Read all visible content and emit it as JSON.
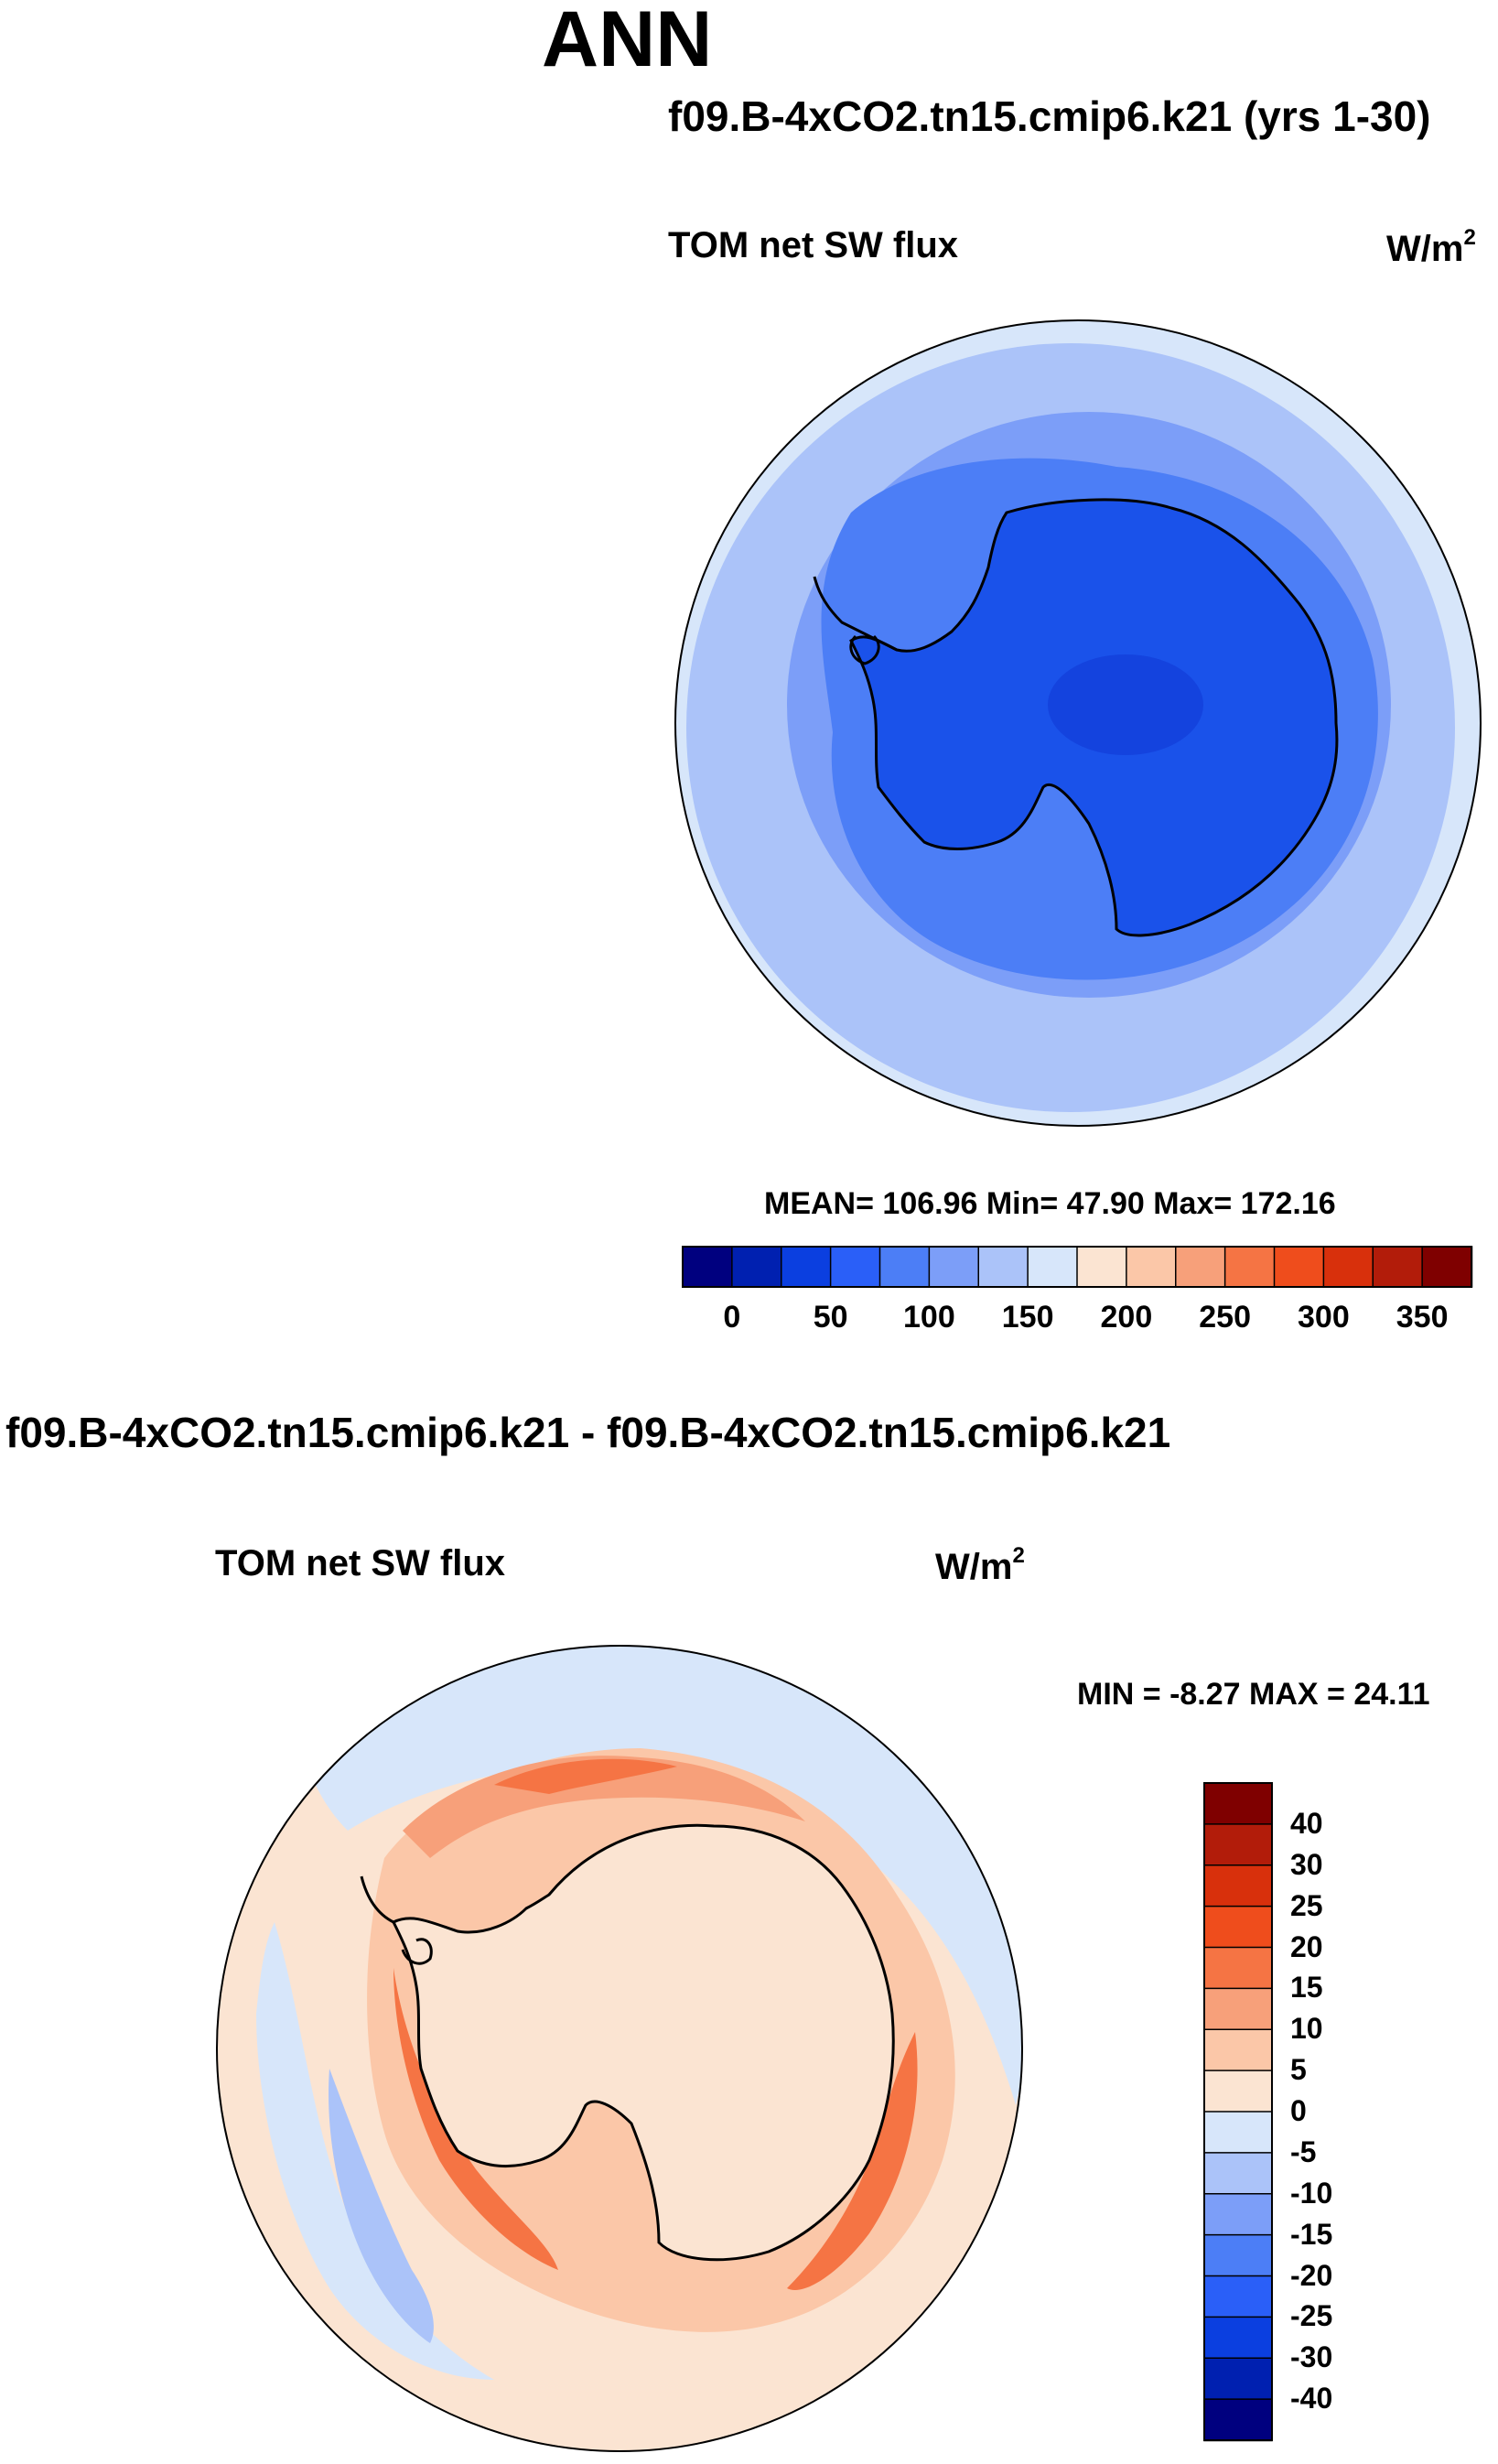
{
  "season": "ANN",
  "top_panel": {
    "case_title": "f09.B-4xCO2.tn15.cmip6.k21 (yrs 1-30)",
    "variable": "TOM net SW flux",
    "units_base": "W/m",
    "units_exp": "2",
    "stats": "MEAN= 106.96  Min=  47.90  Max= 172.16",
    "colorbar_labels": [
      "0",
      "50",
      "100",
      "150",
      "200",
      "250",
      "300",
      "350"
    ],
    "colorbar_colors": [
      "#00007f",
      "#0020b0",
      "#0b3fe0",
      "#2a5ff8",
      "#4c7ef6",
      "#7c9ef8",
      "#abc3f9",
      "#d7e6fa",
      "#fbe4d2",
      "#fbc7a8",
      "#f7a07a",
      "#f57444",
      "#ef4d1c",
      "#d8300c",
      "#b21c0a",
      "#7f0000"
    ],
    "map_colors": {
      "outer": "#d7e6fa",
      "ring1": "#abc3f9",
      "ring2": "#7c9ef8",
      "ring3": "#4c7ef6",
      "continent": "#1a52ea",
      "interior": "#1443de"
    }
  },
  "bottom_panel": {
    "case_title": "f09.B-4xCO2.tn15.cmip6.k21 - f09.B-4xCO2.tn15.cmip6.k21",
    "variable": "TOM net SW flux",
    "units_base": "W/m",
    "units_exp": "2",
    "stats": "MIN =  -8.27 MAX =  24.11",
    "colorbar_labels": [
      "40",
      "30",
      "25",
      "20",
      "15",
      "10",
      "5",
      "0",
      "-5",
      "-10",
      "-15",
      "-20",
      "-25",
      "-30",
      "-40"
    ],
    "colorbar_colors": [
      "#7f0000",
      "#b21c0a",
      "#d8300c",
      "#ef4d1c",
      "#f57444",
      "#f7a07a",
      "#fbc7a8",
      "#fbe4d2",
      "#d7e6fa",
      "#abc3f9",
      "#7c9ef8",
      "#4c7ef6",
      "#2a5ff8",
      "#0b3fe0",
      "#0020b0",
      "#00007f"
    ],
    "map_colors": {
      "background": "#fbe4d2",
      "band_pos": "#fbc7a8",
      "band_strong": "#f7a07a",
      "band_core": "#f57444",
      "neg_light": "#d7e6fa",
      "neg_mid": "#abc3f9"
    }
  }
}
